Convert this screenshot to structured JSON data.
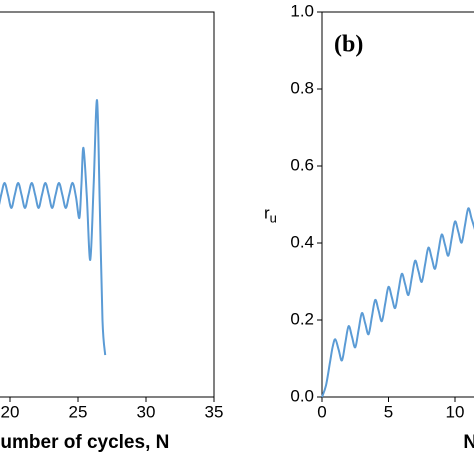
{
  "chart_data": [
    {
      "type": "line",
      "x_label": "Number of cycles, N",
      "xlim": [
        15,
        35
      ],
      "xticks": [
        20,
        25,
        30,
        35
      ],
      "ylim": [
        0,
        1
      ],
      "series": [
        {
          "name": "N",
          "color": "#5b9bd5",
          "x": [
            18.6,
            18.85,
            19.1,
            19.35,
            19.6,
            19.85,
            20.1,
            20.35,
            20.6,
            20.85,
            21.1,
            21.35,
            21.6,
            21.85,
            22.1,
            22.35,
            22.6,
            22.85,
            23.1,
            23.35,
            23.6,
            23.85,
            24.1,
            24.35,
            24.6,
            24.85,
            25.1,
            25.25,
            25.4,
            25.65,
            25.9,
            26.15,
            26.4,
            26.6,
            26.8,
            27.0
          ],
          "values": [
            0.556,
            0.525,
            0.491,
            0.525,
            0.556,
            0.525,
            0.491,
            0.525,
            0.556,
            0.525,
            0.491,
            0.525,
            0.556,
            0.525,
            0.491,
            0.525,
            0.556,
            0.525,
            0.491,
            0.525,
            0.556,
            0.525,
            0.491,
            0.525,
            0.556,
            0.52,
            0.465,
            0.55,
            0.647,
            0.52,
            0.356,
            0.55,
            0.771,
            0.5,
            0.2,
            0.109
          ]
        }
      ]
    },
    {
      "type": "line",
      "annotation": "(b)",
      "y_label": {
        "base": "r",
        "sub": "u"
      },
      "x_label": "Number of cycles, N",
      "xlim": [
        0,
        35
      ],
      "xticks": [
        0,
        5,
        10
      ],
      "ylim": [
        0,
        1
      ],
      "yticks": [
        {
          "value": 0,
          "label": "0.0"
        },
        {
          "value": 0.2,
          "label": "0.2"
        },
        {
          "value": 0.4,
          "label": "0.4"
        },
        {
          "value": 0.6,
          "label": "0.6"
        },
        {
          "value": 0.8,
          "label": "0.8"
        },
        {
          "value": 1,
          "label": "1.0"
        }
      ],
      "series": [
        {
          "name": "ru",
          "color": "#5b9bd5",
          "x": [
            0,
            0.3,
            0.6,
            0.8,
            1,
            1.25,
            1.5,
            1.75,
            2,
            2.25,
            2.5,
            2.75,
            3,
            3.25,
            3.5,
            3.75,
            4,
            4.25,
            4.5,
            4.75,
            5,
            5.25,
            5.5,
            5.75,
            6,
            6.25,
            6.5,
            6.75,
            7,
            7.25,
            7.5,
            7.75,
            8,
            8.25,
            8.5,
            8.75,
            9,
            9.25,
            9.5,
            9.75,
            10,
            10.25,
            10.5,
            10.75,
            11,
            11.25,
            11.5
          ],
          "values": [
            0,
            0.03,
            0.09,
            0.13,
            0.15,
            0.123,
            0.095,
            0.14,
            0.184,
            0.157,
            0.129,
            0.174,
            0.218,
            0.191,
            0.163,
            0.208,
            0.252,
            0.225,
            0.197,
            0.242,
            0.286,
            0.259,
            0.231,
            0.276,
            0.32,
            0.293,
            0.265,
            0.31,
            0.354,
            0.327,
            0.299,
            0.344,
            0.388,
            0.361,
            0.333,
            0.378,
            0.422,
            0.395,
            0.367,
            0.412,
            0.456,
            0.429,
            0.401,
            0.446,
            0.49,
            0.463,
            0.435
          ]
        }
      ]
    }
  ]
}
